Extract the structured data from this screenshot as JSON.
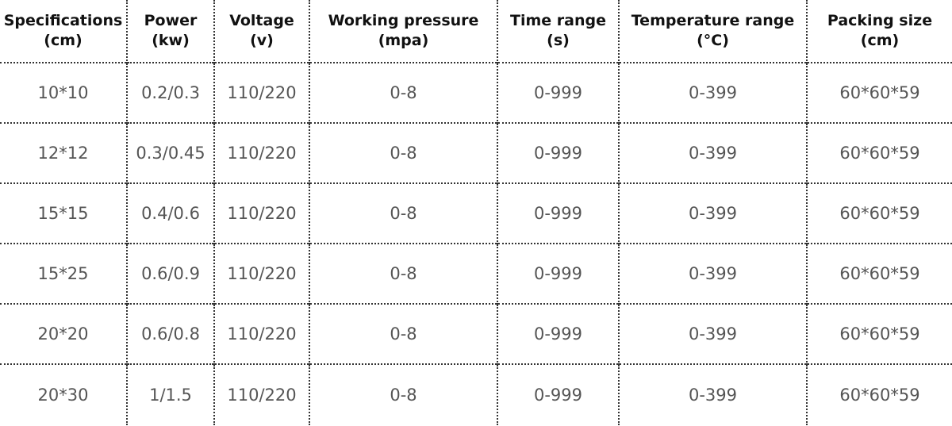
{
  "table": {
    "header": [
      [
        "Specifications",
        "(cm)"
      ],
      [
        "Power",
        "(kw)"
      ],
      [
        "Voltage",
        "(v)"
      ],
      [
        "Working pressure",
        "(mpa)"
      ],
      [
        "Time range",
        "(s)"
      ],
      [
        "Temperature range",
        "(°C)"
      ],
      [
        "Packing size",
        "(cm)"
      ]
    ],
    "rows": [
      [
        "10*10",
        "0.2/0.3",
        "110/220",
        "0-8",
        "0-999",
        "0-399",
        "60*60*59"
      ],
      [
        "12*12",
        "0.3/0.45",
        "110/220",
        "0-8",
        "0-999",
        "0-399",
        "60*60*59"
      ],
      [
        "15*15",
        "0.4/0.6",
        "110/220",
        "0-8",
        "0-999",
        "0-399",
        "60*60*59"
      ],
      [
        "15*25",
        "0.6/0.9",
        "110/220",
        "0-8",
        "0-999",
        "0-399",
        "60*60*59"
      ],
      [
        "20*20",
        "0.6/0.8",
        "110/220",
        "0-8",
        "0-999",
        "0-399",
        "60*60*59"
      ],
      [
        "20*30",
        "1/1.5",
        "110/220",
        "0-8",
        "0-999",
        "0-399",
        "60*60*59"
      ]
    ]
  }
}
